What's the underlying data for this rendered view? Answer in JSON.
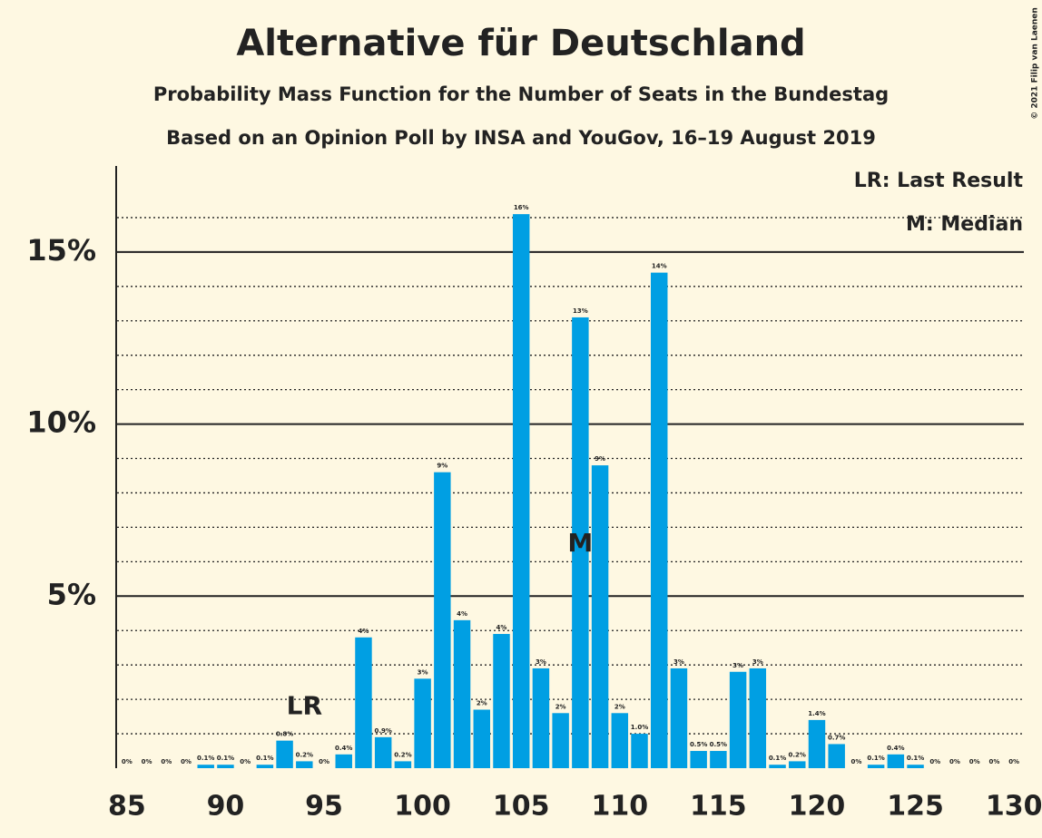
{
  "chart_data": {
    "type": "bar",
    "title": "Alternative für Deutschland",
    "subtitle": "Probability Mass Function for the Number of Seats in the Bundestag",
    "subtitle_2": "Based on an Opinion Poll by INSA and YouGov, 16–19 August 2019",
    "copyright": "© 2021 Filip van Laenen",
    "legend": [
      "LR: Last Result",
      "M: Median"
    ],
    "x": [
      85,
      86,
      87,
      88,
      89,
      90,
      91,
      92,
      93,
      94,
      95,
      96,
      97,
      98,
      99,
      100,
      101,
      102,
      103,
      104,
      105,
      106,
      107,
      108,
      109,
      110,
      111,
      112,
      113,
      114,
      115,
      116,
      117,
      118,
      119,
      120,
      121,
      122,
      123,
      124,
      125,
      126,
      127,
      128,
      129,
      130
    ],
    "values": [
      0,
      0,
      0,
      0,
      0.1,
      0.1,
      0,
      0.1,
      0.8,
      0.2,
      0,
      0.4,
      3.8,
      0.9,
      0.2,
      2.6,
      8.6,
      4.3,
      1.7,
      3.9,
      16.1,
      2.9,
      1.6,
      13.1,
      8.8,
      1.6,
      1.0,
      14.4,
      2.9,
      0.5,
      0.5,
      2.8,
      2.9,
      0.1,
      0.2,
      1.4,
      0.7,
      0,
      0.1,
      0.4,
      0.1,
      0,
      0,
      0,
      0,
      0
    ],
    "value_labels": [
      "0%",
      "0%",
      "0%",
      "0%",
      "0.1%",
      "0.1%",
      "0%",
      "0.1%",
      "0.8%",
      "0.2%",
      "0%",
      "0.4%",
      "4%",
      "0.9%",
      "0.2%",
      "3%",
      "9%",
      "4%",
      "2%",
      "4%",
      "16%",
      "3%",
      "2%",
      "13%",
      "9%",
      "2%",
      "1.0%",
      "14%",
      "3%",
      "0.5%",
      "0.5%",
      "3%",
      "3%",
      "0.1%",
      "0.2%",
      "1.4%",
      "0.7%",
      "0%",
      "0.1%",
      "0.4%",
      "0.1%",
      "0%",
      "0%",
      "0%",
      "0%",
      "0%"
    ],
    "color": "#009fe3",
    "annotations": [
      {
        "text": "LR",
        "x": 94
      },
      {
        "text": "M",
        "x": 108
      }
    ],
    "xlim": [
      84.5,
      130.5
    ],
    "xticks": [
      85,
      90,
      95,
      100,
      105,
      110,
      115,
      120,
      125,
      130
    ],
    "ylim": [
      0,
      17.5
    ],
    "yticks": [
      {
        "value": 5,
        "label": "5%"
      },
      {
        "value": 10,
        "label": "10%"
      },
      {
        "value": 15,
        "label": "15%"
      }
    ],
    "minor_yticks": [
      1,
      2,
      3,
      4,
      6,
      7,
      8,
      9,
      11,
      12,
      13,
      14,
      16
    ],
    "grid": true
  }
}
